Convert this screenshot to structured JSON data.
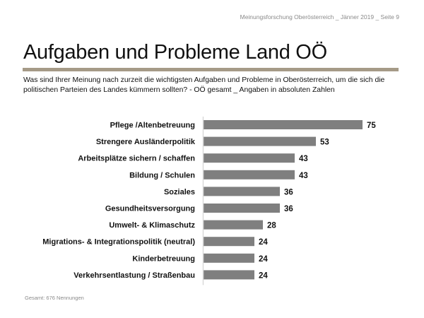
{
  "header": {
    "note": "Meinungsforschung Oberösterreich _ Jänner 2019 _ Seite 9",
    "title": "Aufgaben und Probleme Land OÖ",
    "question": "Was sind Ihrer Meinung nach zurzeit die wichtigsten Aufgaben und Probleme in Oberösterreich, um die sich die politischen Parteien des Landes kümmern sollten? - OÖ gesamt _ Angaben in absoluten Zahlen"
  },
  "footer": {
    "note": "Gesamt: 676 Nennungen"
  },
  "colors": {
    "bar": "#7f7f7f",
    "rule": "#a59a87",
    "axis": "#d9d9d9"
  },
  "chart_data": {
    "type": "bar",
    "orientation": "horizontal",
    "title": "Aufgaben und Probleme Land OÖ",
    "xlabel": "",
    "ylabel": "",
    "xlim": [
      0,
      80
    ],
    "grid": false,
    "legend": "none",
    "categories": [
      "Pflege /Altenbetreuung",
      "Strengere Ausländerpolitik",
      "Arbeitsplätze sichern / schaffen",
      "Bildung / Schulen",
      "Soziales",
      "Gesundheitsversorgung",
      "Umwelt- & Klimaschutz",
      "Migrations- & Integrationspolitik (neutral)",
      "Kinderbetreuung",
      "Verkehrsentlastung / Straßenbau"
    ],
    "values": [
      75,
      53,
      43,
      43,
      36,
      36,
      28,
      24,
      24,
      24
    ]
  }
}
